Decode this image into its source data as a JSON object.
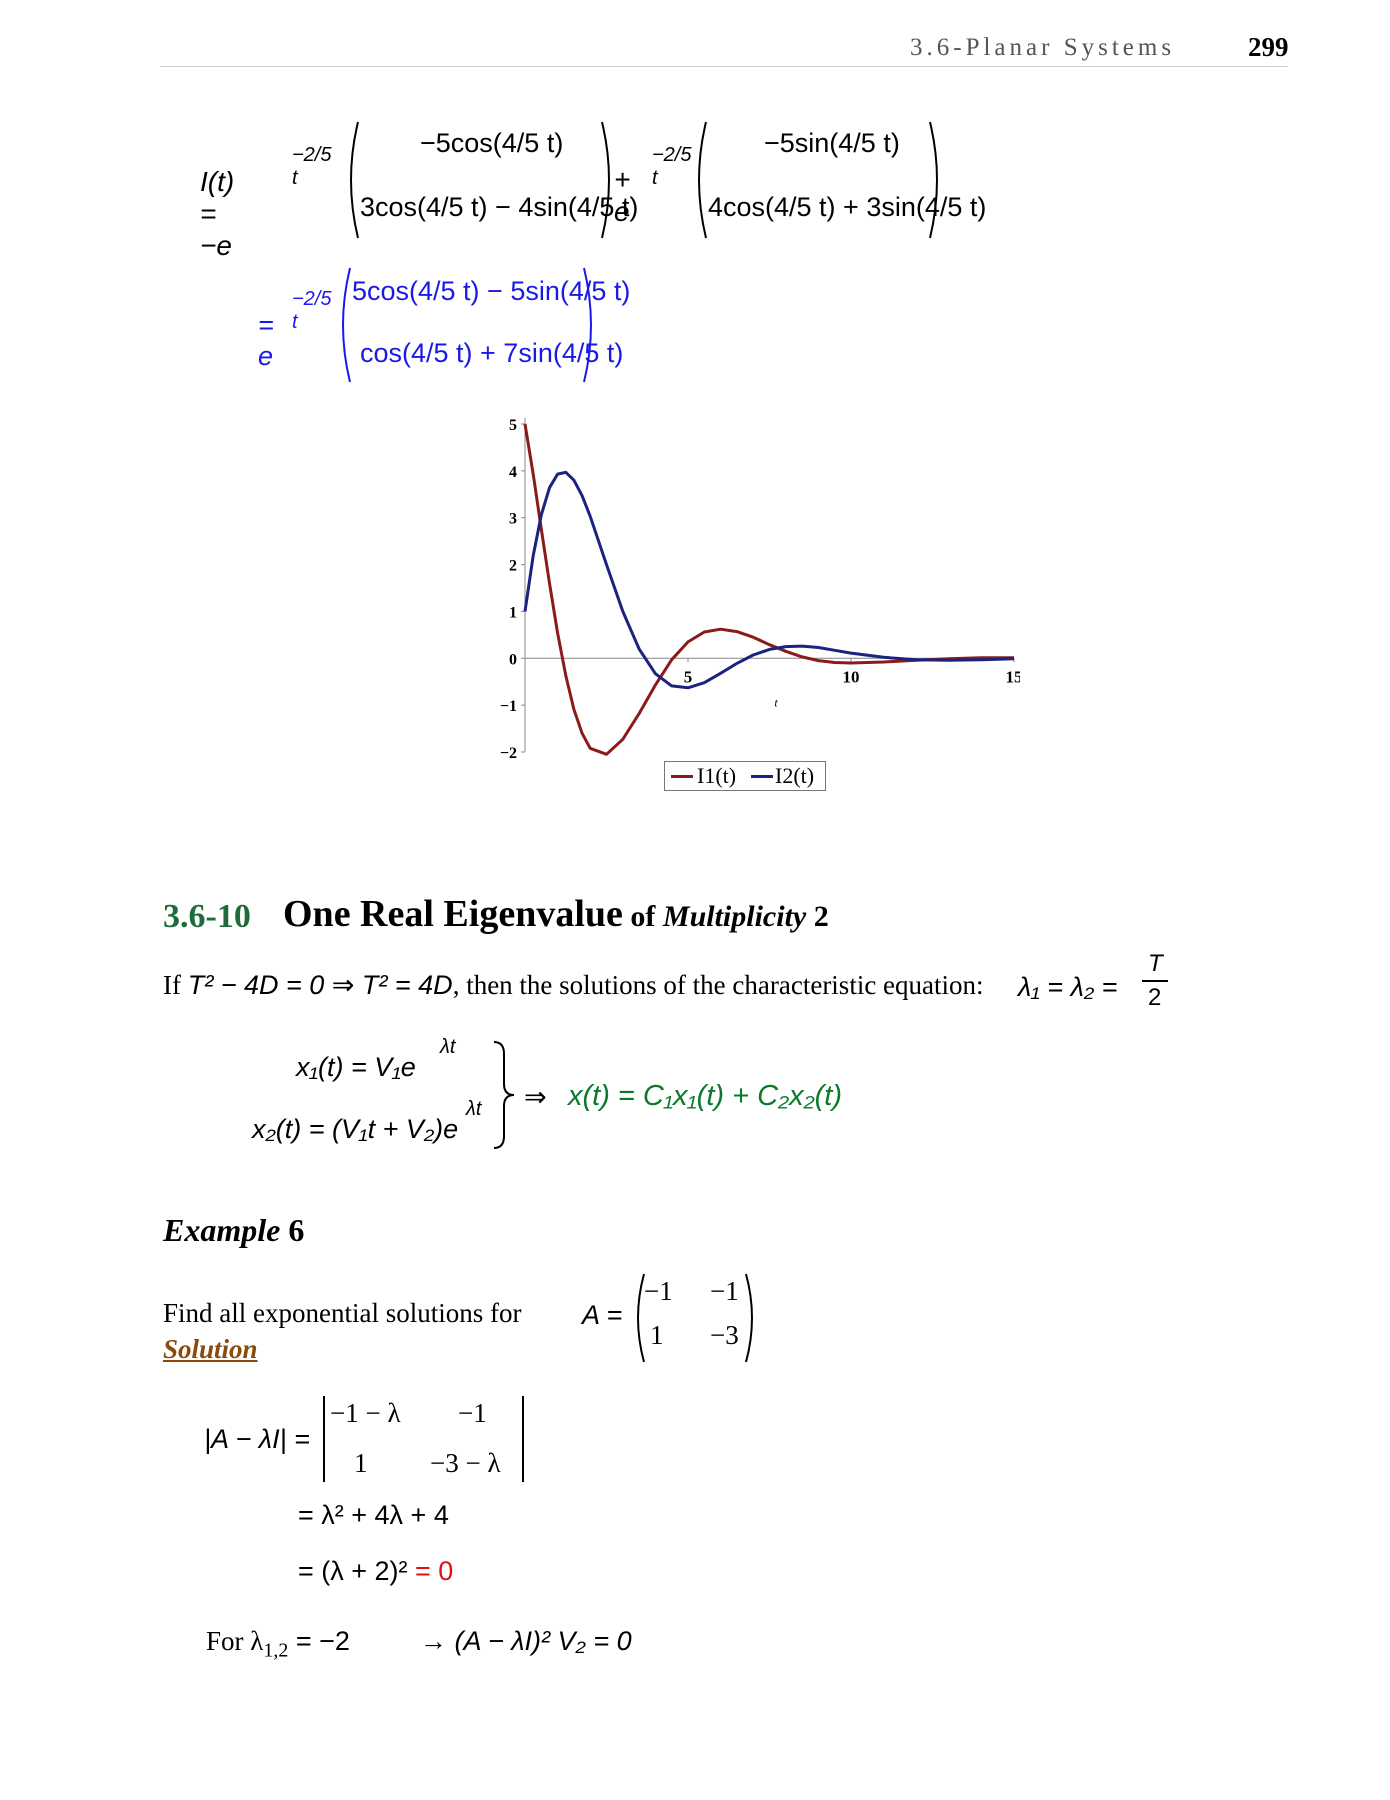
{
  "header": {
    "running_title": "3.6-Planar Systems",
    "page_number": "299"
  },
  "equation_top": {
    "lhs": "I(t) = −e",
    "exp1": "−2/5 t",
    "m1_row1": "−5cos(4/5 t)",
    "m1_row2": "3cos(4/5 t) − 4sin(4/5 t)",
    "plus": "+ e",
    "exp2": "−2/5 t",
    "m2_row1": "−5sin(4/5 t)",
    "m2_row2": "4cos(4/5 t) + 3sin(4/5 t)",
    "eq2_lhs": "= e",
    "eq2_exp": "−2/5 t",
    "m3_row1": "5cos(4/5 t) − 5sin(4/5 t)",
    "m3_row2": "cos(4/5 t) + 7sin(4/5 t)"
  },
  "chart_data": {
    "type": "line",
    "xlabel": "t",
    "ylabel": "",
    "xlim": [
      0,
      15
    ],
    "ylim": [
      -2,
      5
    ],
    "x_ticks": [
      "5",
      "10",
      "15"
    ],
    "y_ticks": [
      "5",
      "4",
      "3",
      "2",
      "1",
      "0",
      "−1",
      "−2"
    ],
    "series": [
      {
        "name": "I1(t)",
        "color": "#8b1a1a",
        "x": [
          0,
          0.25,
          0.5,
          0.75,
          1,
          1.25,
          1.5,
          1.75,
          2,
          2.5,
          3,
          3.5,
          4,
          4.5,
          5,
          5.5,
          6,
          6.5,
          7,
          7.5,
          8,
          8.5,
          9,
          9.5,
          10,
          11,
          12,
          13,
          14,
          15
        ],
        "y": [
          5.0,
          3.93,
          2.76,
          1.6,
          0.54,
          -0.37,
          -1.09,
          -1.6,
          -1.92,
          -2.05,
          -1.73,
          -1.18,
          -0.57,
          -0.03,
          0.35,
          0.56,
          0.62,
          0.57,
          0.45,
          0.29,
          0.15,
          0.03,
          -0.05,
          -0.09,
          -0.1,
          -0.08,
          -0.04,
          -0.01,
          0.01,
          0.01
        ]
      },
      {
        "name": "I2(t)",
        "color": "#1a237e",
        "x": [
          0,
          0.25,
          0.5,
          0.75,
          1,
          1.25,
          1.5,
          1.75,
          2,
          2.5,
          3,
          3.5,
          4,
          4.5,
          5,
          5.5,
          6,
          6.5,
          7,
          7.5,
          8,
          8.5,
          9,
          9.5,
          10,
          11,
          12,
          13,
          14,
          15
        ],
        "y": [
          1.0,
          2.19,
          3.06,
          3.64,
          3.93,
          3.97,
          3.8,
          3.47,
          3.03,
          2.0,
          1.0,
          0.2,
          -0.33,
          -0.59,
          -0.63,
          -0.52,
          -0.32,
          -0.11,
          0.07,
          0.19,
          0.25,
          0.26,
          0.23,
          0.17,
          0.11,
          0.02,
          -0.03,
          -0.04,
          -0.03,
          -0.01
        ]
      }
    ]
  },
  "section": {
    "number": "3.6-10",
    "title_main": "One Real Eigenvalue",
    "title_of": " of ",
    "title_mult": "Multiplicity",
    "title_two": " 2"
  },
  "intro": {
    "if_text": "If",
    "cond": "T² − 4D = 0 ⇒ T² = 4D",
    "then_text": ", then the solutions of the characteristic equation:",
    "lambda_eq": "λ₁ = λ₂ =",
    "frac_num": "T",
    "frac_den": "2"
  },
  "solutions": {
    "x1": "x₁(t) = V₁e",
    "x1_exp": "λt",
    "x2": "x₂(t) = (V₁t + V₂)e",
    "x2_exp": "λt",
    "arrow": "⇒",
    "general": "x(t) = C₁x₁(t) + C₂x₂(t)"
  },
  "example": {
    "label": "Example",
    "number": "6",
    "prompt": "Find all exponential solutions for",
    "matrix_lhs": "A =",
    "a11": "−1",
    "a12": "−1",
    "a21": "1",
    "a22": "−3"
  },
  "solution": {
    "label": "Solution",
    "det_lhs": "|A − λI| =",
    "d11": "−1 − λ",
    "d12": "−1",
    "d21": "1",
    "d22": "−3 − λ",
    "line2": "= λ² + 4λ + 4",
    "line3_a": "= (λ + 2)²",
    "line3_b": " = 0",
    "for_text": "For λ",
    "for_sub": "1,2",
    "for_val": " = −2",
    "implies": "→ (A − λI)² V₂ = 0"
  }
}
